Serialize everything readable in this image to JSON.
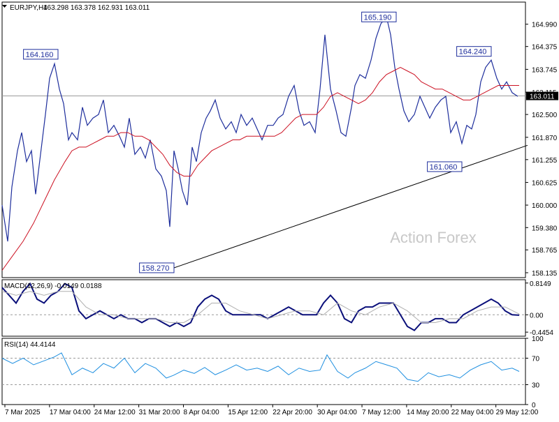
{
  "chart_data": {
    "type": "line",
    "title": "EURJPY,H4",
    "ohlc_text": "163.298 163.378 162.931 163.011",
    "watermark": "Action Forex",
    "current_price": "163.011",
    "x_tick_labels": [
      "7 Mar 2025",
      "17 Mar 04:00",
      "24 Mar 12:00",
      "31 Mar 20:00",
      "8 Apr 04:00",
      "15 Apr 12:00",
      "22 Apr 20:00",
      "30 Apr 04:00",
      "7 May 12:00",
      "14 May 20:00",
      "22 May 04:00",
      "29 May 12:00"
    ],
    "price_panel": {
      "y_ticks": [
        "164.990",
        "164.375",
        "163.745",
        "163.115",
        "162.500",
        "161.870",
        "161.255",
        "160.625",
        "160.000",
        "159.380",
        "158.765",
        "158.135"
      ],
      "ylim": [
        158.0,
        165.6
      ],
      "series": [
        {
          "name": "close",
          "color": "#1e2e9c",
          "x": [
            0,
            8,
            14,
            22,
            28,
            35,
            42,
            48,
            55,
            62,
            68,
            75,
            82,
            88,
            95,
            100,
            108,
            115,
            122,
            130,
            138,
            145,
            152,
            160,
            168,
            175,
            182,
            190,
            198,
            205,
            212,
            220,
            228,
            235,
            240,
            246,
            252,
            258,
            265,
            272,
            278,
            285,
            292,
            298,
            305,
            312,
            320,
            328,
            335,
            342,
            350,
            358,
            365,
            372,
            380,
            388,
            395,
            402,
            410,
            418,
            425,
            432,
            440,
            448,
            455,
            462,
            470,
            478,
            485,
            492,
            500,
            505,
            512,
            520,
            528,
            535,
            542,
            550,
            556,
            562,
            568,
            575,
            582,
            590,
            598,
            605,
            612,
            620,
            628,
            635,
            642,
            650,
            658,
            665,
            672,
            678,
            685,
            692,
            700,
            708,
            715,
            722,
            730,
            738
          ],
          "y": [
            160.0,
            159.0,
            160.5,
            161.5,
            162.0,
            161.2,
            161.5,
            160.3,
            161.4,
            162.5,
            163.5,
            163.9,
            163.2,
            162.8,
            161.8,
            162.0,
            161.8,
            162.7,
            162.2,
            162.4,
            162.5,
            162.9,
            162.0,
            162.2,
            161.9,
            161.6,
            162.4,
            161.4,
            161.6,
            161.3,
            161.8,
            161.0,
            160.8,
            160.4,
            159.4,
            161.5,
            161.0,
            160.4,
            160.0,
            161.6,
            161.2,
            162.0,
            162.4,
            162.6,
            162.9,
            162.4,
            162.1,
            162.3,
            162.0,
            162.5,
            162.2,
            162.4,
            162.1,
            161.8,
            162.2,
            162.2,
            162.4,
            162.5,
            163.0,
            163.3,
            162.6,
            162.2,
            162.3,
            162.0,
            163.2,
            164.7,
            163.2,
            162.6,
            162.0,
            161.9,
            162.7,
            163.3,
            163.6,
            163.5,
            164.0,
            164.6,
            165.0,
            165.2,
            164.7,
            163.8,
            163.2,
            162.6,
            162.3,
            162.5,
            163.0,
            162.7,
            162.4,
            162.7,
            162.9,
            163.0,
            162.0,
            162.3,
            161.7,
            162.2,
            162.1,
            162.5,
            163.4,
            163.8,
            164.0,
            163.5,
            163.2,
            163.4,
            163.1,
            163.0
          ]
        },
        {
          "name": "ma",
          "color": "#cc1122",
          "x": [
            0,
            15,
            30,
            45,
            60,
            75,
            90,
            100,
            110,
            120,
            130,
            140,
            150,
            160,
            170,
            180,
            190,
            200,
            210,
            220,
            230,
            240,
            250,
            260,
            270,
            280,
            290,
            300,
            310,
            320,
            330,
            340,
            350,
            360,
            370,
            380,
            390,
            400,
            410,
            420,
            430,
            440,
            450,
            460,
            470,
            480,
            490,
            500,
            510,
            520,
            530,
            540,
            550,
            560,
            570,
            580,
            590,
            600,
            610,
            620,
            630,
            640,
            650,
            660,
            670,
            680,
            690,
            700,
            710,
            720,
            730,
            740
          ],
          "y": [
            158.2,
            158.6,
            159.0,
            159.5,
            160.1,
            160.7,
            161.2,
            161.5,
            161.6,
            161.6,
            161.7,
            161.8,
            161.9,
            161.9,
            162.0,
            162.0,
            161.9,
            161.9,
            161.8,
            161.6,
            161.4,
            161.1,
            160.9,
            160.8,
            160.8,
            161.1,
            161.3,
            161.5,
            161.6,
            161.7,
            161.8,
            161.8,
            161.9,
            161.9,
            161.9,
            161.9,
            161.9,
            162.0,
            162.2,
            162.4,
            162.5,
            162.5,
            162.5,
            162.7,
            163.0,
            163.1,
            163.0,
            162.9,
            162.8,
            162.9,
            163.1,
            163.4,
            163.6,
            163.7,
            163.8,
            163.7,
            163.6,
            163.4,
            163.3,
            163.2,
            163.2,
            163.1,
            163.0,
            162.9,
            162.9,
            163.0,
            163.1,
            163.2,
            163.3,
            163.3,
            163.3,
            163.3
          ]
        }
      ],
      "trendline": {
        "x": [
          246,
          752
        ],
        "y": [
          158.27,
          161.65
        ]
      },
      "annotations": [
        {
          "label": "164.160",
          "x": 80,
          "y": 164.16,
          "anchor": "left"
        },
        {
          "label": "165.190",
          "x": 564,
          "y": 165.19,
          "anchor": "left"
        },
        {
          "label": "164.240",
          "x": 700,
          "y": 164.24,
          "anchor": "left"
        },
        {
          "label": "161.060",
          "x": 658,
          "y": 161.06,
          "anchor": "left"
        },
        {
          "label": "158.270",
          "x": 246,
          "y": 158.27,
          "anchor": "left"
        }
      ]
    },
    "macd_panel": {
      "title": "MACD(12,26,9) -0.0149 0.0188",
      "y_ticks": [
        "0.8149",
        "0.00",
        "-0.4454"
      ],
      "ylim": [
        -0.55,
        0.9
      ],
      "series": [
        {
          "name": "macd",
          "color": "#0a0f7a",
          "x": [
            0,
            10,
            20,
            30,
            40,
            50,
            60,
            70,
            80,
            90,
            100,
            110,
            120,
            130,
            140,
            150,
            160,
            170,
            180,
            190,
            200,
            210,
            220,
            230,
            240,
            250,
            260,
            270,
            280,
            290,
            300,
            310,
            320,
            330,
            340,
            350,
            360,
            370,
            380,
            390,
            400,
            410,
            420,
            430,
            440,
            450,
            460,
            470,
            480,
            490,
            500,
            510,
            520,
            530,
            540,
            550,
            560,
            570,
            580,
            590,
            600,
            610,
            620,
            630,
            640,
            650,
            660,
            670,
            680,
            690,
            700,
            710,
            720,
            730,
            740
          ],
          "y": [
            0.7,
            0.5,
            0.3,
            0.6,
            0.8,
            0.4,
            0.3,
            0.5,
            0.6,
            0.8,
            0.7,
            0.1,
            -0.1,
            0.0,
            0.1,
            0.0,
            -0.1,
            0.0,
            -0.1,
            -0.1,
            -0.2,
            -0.1,
            -0.1,
            -0.2,
            -0.3,
            -0.2,
            -0.3,
            -0.2,
            0.2,
            0.4,
            0.5,
            0.4,
            0.1,
            0.0,
            0.0,
            0.0,
            0.0,
            0.0,
            -0.1,
            0.0,
            0.1,
            0.2,
            0.1,
            0.0,
            0.0,
            0.0,
            0.3,
            0.5,
            0.3,
            -0.1,
            -0.2,
            0.1,
            0.2,
            0.2,
            0.3,
            0.3,
            0.3,
            0.0,
            -0.3,
            -0.4,
            -0.2,
            -0.2,
            -0.1,
            -0.1,
            -0.2,
            -0.2,
            0.0,
            0.1,
            0.2,
            0.3,
            0.4,
            0.3,
            0.1,
            0.0,
            -0.01
          ]
        },
        {
          "name": "signal",
          "color": "#b0b0b0",
          "x": [
            0,
            20,
            40,
            60,
            80,
            100,
            120,
            140,
            160,
            180,
            200,
            220,
            240,
            260,
            280,
            300,
            320,
            340,
            360,
            380,
            400,
            420,
            440,
            460,
            480,
            500,
            520,
            540,
            560,
            580,
            600,
            620,
            640,
            660,
            680,
            700,
            720,
            740
          ],
          "y": [
            0.6,
            0.5,
            0.6,
            0.5,
            0.6,
            0.6,
            0.2,
            0.0,
            0.0,
            -0.1,
            -0.1,
            -0.1,
            -0.2,
            -0.2,
            0.0,
            0.3,
            0.3,
            0.1,
            0.0,
            -0.1,
            0.0,
            0.1,
            0.1,
            0.0,
            0.3,
            0.1,
            0.0,
            0.2,
            0.3,
            0.1,
            -0.2,
            -0.2,
            -0.1,
            -0.1,
            0.1,
            0.2,
            0.2,
            0.02
          ]
        }
      ]
    },
    "rsi_panel": {
      "title": "RSI(14) 44.4144",
      "y_ticks": [
        "100",
        "70",
        "30",
        "0"
      ],
      "ylim": [
        0,
        100
      ],
      "levels": [
        70,
        30
      ],
      "series": [
        {
          "name": "rsi",
          "color": "#1e8fe0",
          "x": [
            0,
            15,
            30,
            45,
            60,
            75,
            85,
            100,
            115,
            130,
            145,
            160,
            175,
            190,
            205,
            220,
            235,
            245,
            260,
            275,
            290,
            305,
            320,
            335,
            350,
            365,
            380,
            395,
            410,
            425,
            440,
            455,
            465,
            480,
            495,
            505,
            520,
            535,
            550,
            565,
            580,
            595,
            610,
            625,
            640,
            655,
            670,
            685,
            700,
            715,
            730,
            740
          ],
          "y": [
            70,
            62,
            70,
            60,
            66,
            72,
            78,
            45,
            55,
            48,
            62,
            55,
            70,
            48,
            62,
            55,
            40,
            44,
            52,
            47,
            56,
            45,
            52,
            60,
            52,
            55,
            50,
            58,
            45,
            55,
            50,
            52,
            75,
            50,
            40,
            48,
            55,
            65,
            60,
            55,
            38,
            35,
            48,
            42,
            45,
            40,
            52,
            60,
            65,
            52,
            55,
            50
          ]
        }
      ]
    }
  }
}
